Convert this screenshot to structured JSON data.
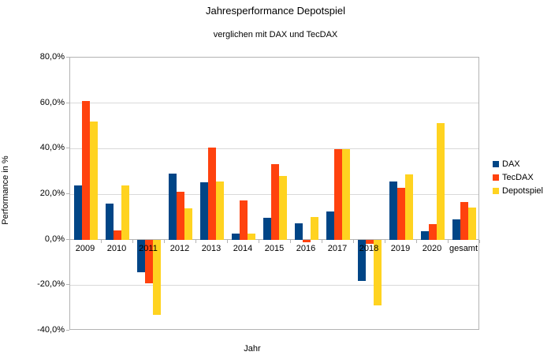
{
  "title": "Jahresperformance Depotspiel",
  "subtitle": "verglichen mit DAX und TecDAX",
  "chart_data": {
    "type": "bar",
    "title": "Jahresperformance Depotspiel",
    "subtitle": "verglichen mit DAX und TecDAX",
    "xlabel": "Jahr",
    "ylabel": "Performance in %",
    "categories": [
      "2009",
      "2010",
      "2011",
      "2012",
      "2013",
      "2014",
      "2015",
      "2016",
      "2017",
      "2018",
      "2019",
      "2020",
      "gesamt"
    ],
    "series": [
      {
        "name": "DAX",
        "color": "#004586",
        "values": [
          23.8,
          16.0,
          -14.5,
          29.1,
          25.3,
          2.5,
          9.5,
          7.0,
          12.5,
          -18.3,
          25.4,
          3.7,
          8.9
        ]
      },
      {
        "name": "TecDAX",
        "color": "#FF420E",
        "values": [
          60.8,
          4.0,
          -19.2,
          20.9,
          40.6,
          17.3,
          33.2,
          -1.0,
          39.6,
          -2.0,
          22.9,
          6.7,
          16.4
        ]
      },
      {
        "name": "Depotspiel",
        "color": "#FFD320",
        "values": [
          52.0,
          23.9,
          -33.1,
          13.6,
          25.7,
          2.8,
          28.1,
          10.1,
          39.8,
          -28.8,
          28.5,
          51.2,
          14.1
        ]
      }
    ],
    "ylim": [
      -40,
      80
    ],
    "ytick_step": 20,
    "ytick_labels": [
      "80,0%",
      "60,0%",
      "40,0%",
      "20,0%",
      "0,0%",
      "-20,0%",
      "-40,0%"
    ],
    "ytick_values": [
      80,
      60,
      40,
      20,
      0,
      -20,
      -40
    ],
    "grid": true,
    "legend_position": "right",
    "axis_color": "#b3b3b3",
    "grid_color": "#d9d9d9",
    "background": "#ffffff"
  }
}
